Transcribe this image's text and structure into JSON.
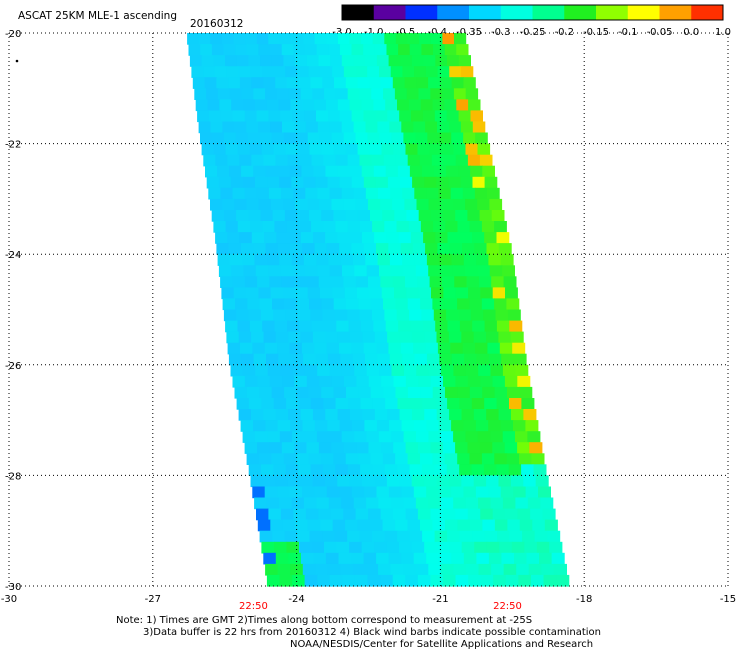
{
  "header": {
    "title": "ASCAT 25KM MLE-1 ascending",
    "date": "20160312"
  },
  "colorbar": {
    "labels": [
      "-3.0",
      "-1.0",
      "-0.5",
      "-0.4",
      "-0.35",
      "-0.3",
      "-0.25",
      "-0.2",
      "-0.15",
      "-0.1",
      "-0.05",
      "0.0",
      "1.0"
    ],
    "colors": [
      "#000000",
      "#5a00a0",
      "#0030ff",
      "#0090ff",
      "#00d8ff",
      "#00ffe0",
      "#00ff90",
      "#20f020",
      "#90ff00",
      "#ffff00",
      "#ffa000",
      "#ff3000"
    ]
  },
  "notes": {
    "line1": "Note: 1) Times are GMT 2)Times along bottom correspond to measurement at -25S",
    "line2": "3)Data buffer is 22 hrs from 20160312 4) Black wind barbs indicate possible contamination",
    "line3": "NOAA/NESDIS/Center for Satellite Applications and Research"
  },
  "chart_data": {
    "type": "heatmap",
    "x_ticks": [
      -30,
      -27,
      -24,
      -21,
      -18,
      -15
    ],
    "y_ticks": [
      -20,
      -22,
      -24,
      -26,
      -28,
      -30
    ],
    "xlim": [
      -30,
      -15
    ],
    "ylim": [
      -30,
      -20
    ],
    "grid": true,
    "time_labels": [
      {
        "x": -24.9,
        "text": "22:50"
      },
      {
        "x": -19.6,
        "text": "22:50"
      }
    ],
    "swath": {
      "left_edge": [
        [
          -26.3,
          -20
        ],
        [
          -26.0,
          -22
        ],
        [
          -25.7,
          -23.7
        ],
        [
          -25.4,
          -26
        ],
        [
          -25.0,
          -27.9
        ],
        [
          -24.6,
          -30
        ]
      ],
      "right_edge": [
        [
          -20.5,
          -20
        ],
        [
          -20.0,
          -22
        ],
        [
          -19.5,
          -24
        ],
        [
          -19.2,
          -26
        ],
        [
          -18.8,
          -27.9
        ],
        [
          -18.3,
          -30
        ]
      ]
    },
    "color_scale": [
      "-3.0",
      "-1.0",
      "-0.5",
      "-0.4",
      "-0.35",
      "-0.3",
      "-0.25",
      "-0.2",
      "-0.15",
      "-0.1",
      "-0.05",
      "0.0",
      "1.0"
    ]
  }
}
